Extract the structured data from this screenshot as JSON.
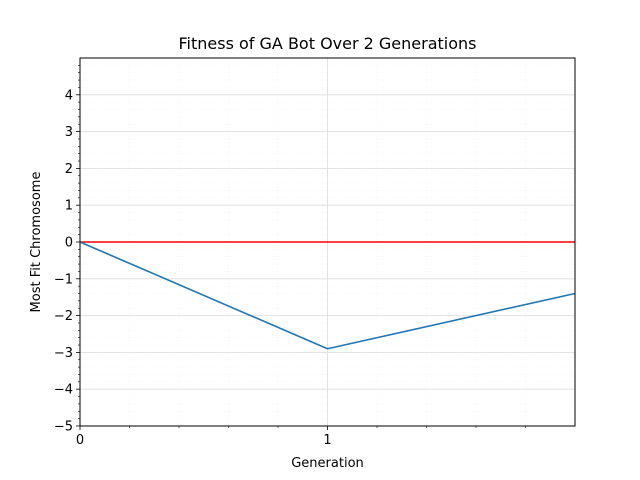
{
  "chart_data": {
    "type": "line",
    "title": "Fitness of GA Bot Over 2 Generations",
    "xlabel": "Generation",
    "ylabel": "Most Fit Chromosome",
    "xlim": [
      0,
      2
    ],
    "ylim": [
      -5,
      5
    ],
    "x_ticks": [
      0,
      1
    ],
    "y_ticks": [
      -5,
      -4,
      -3,
      -2,
      -1,
      0,
      1,
      2,
      3,
      4
    ],
    "grid": true,
    "series": [
      {
        "x": [
          0,
          1,
          2
        ],
        "values": [
          0,
          -2.9,
          -1.4
        ],
        "color": "#1f77b4"
      }
    ],
    "hlines": [
      {
        "y": 0,
        "color": "#ff0000"
      }
    ]
  }
}
